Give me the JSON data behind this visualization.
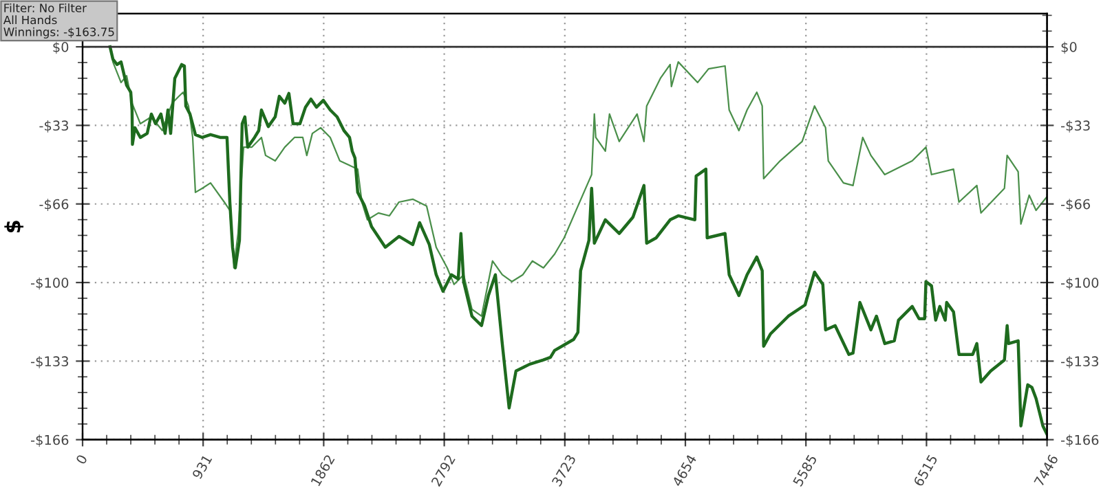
{
  "chart_data": {
    "type": "line",
    "ylabel": "$",
    "annotations": [
      "Filter: No Filter\nAll Hands\nWinnings: -$163.75"
    ],
    "xlim": [
      0,
      7446
    ],
    "ylim": [
      -166,
      14
    ],
    "xticks": [
      0,
      {
        "value": 930.75,
        "label": "931"
      },
      {
        "value": 1861.5,
        "label": "1862"
      },
      {
        "value": 2792.25,
        "label": "2792"
      },
      {
        "value": 3723,
        "label": "3723"
      },
      {
        "value": 4653.75,
        "label": "4654"
      },
      {
        "value": 5584.5,
        "label": "5585"
      },
      {
        "value": 6515.25,
        "label": "6515"
      },
      7446
    ],
    "yticks": [
      {
        "value": 0,
        "label": "$0"
      },
      {
        "value": -33.2,
        "label": "-$33"
      },
      {
        "value": -66.4,
        "label": "-$66"
      },
      {
        "value": -99.6,
        "label": "-$100"
      },
      {
        "value": -132.8,
        "label": "-$133"
      },
      {
        "value": -166,
        "label": "-$166"
      }
    ],
    "y2lim": [
      -166,
      14
    ],
    "y2ticks": [
      {
        "value": 0,
        "label": "$0"
      },
      {
        "value": -33.2,
        "label": "-$33"
      },
      {
        "value": -66.4,
        "label": "-$66"
      },
      {
        "value": -99.6,
        "label": "-$100"
      },
      {
        "value": -132.8,
        "label": "-$133"
      },
      {
        "value": -166,
        "label": "-$166"
      }
    ],
    "grid": true,
    "ref_lines": [
      {
        "axis": "y",
        "value": 0,
        "color": "#333333"
      }
    ],
    "series": [
      {
        "color": "#4a8f4a",
        "x": [
          212,
          234,
          297,
          340,
          382,
          446,
          531,
          616,
          691,
          744,
          776,
          818,
          850,
          871,
          924,
          988,
          1094,
          1137,
          1168,
          1200,
          1243,
          1307,
          1381,
          1413,
          1487,
          1561,
          1636,
          1700,
          1731,
          1774,
          1838,
          1912,
          1986,
          2124,
          2156,
          2199,
          2284,
          2369,
          2443,
          2549,
          2656,
          2730,
          2815,
          2868,
          2942,
          3006,
          3080,
          3165,
          3240,
          3314,
          3399,
          3473,
          3558,
          3644,
          3718,
          3824,
          3930,
          3951,
          3962,
          4036,
          4068,
          4143,
          4281,
          4334,
          4355,
          4461,
          4536,
          4546,
          4599,
          4748,
          4833,
          4960,
          4992,
          5067,
          5130,
          5205,
          5247,
          5258,
          5385,
          5555,
          5651,
          5736,
          5757,
          5874,
          5948,
          6023,
          6086,
          6193,
          6405,
          6511,
          6554,
          6724,
          6766,
          6904,
          6936,
          7117,
          7138,
          7223,
          7244,
          7308,
          7361,
          7446
        ],
        "values": [
          0,
          -6.4,
          -15.1,
          -12.2,
          -23.8,
          -32.5,
          -29.6,
          -35.4,
          -23.8,
          -20.9,
          -19.2,
          -25.0,
          -38.3,
          -61.5,
          -59.8,
          -57.5,
          -65.6,
          -69.1,
          -93.4,
          -78.9,
          -42.4,
          -42.4,
          -38.3,
          -45.9,
          -48.2,
          -42.4,
          -38.3,
          -38.3,
          -45.9,
          -36.6,
          -34.2,
          -38.3,
          -48.2,
          -51.7,
          -65.6,
          -73.1,
          -70.2,
          -71.4,
          -65.6,
          -64.4,
          -67.3,
          -84.7,
          -93.4,
          -100.4,
          -96.3,
          -110.9,
          -113.8,
          -90.5,
          -96.3,
          -99.2,
          -96.3,
          -90.5,
          -93.4,
          -87.6,
          -80.7,
          -67.3,
          -54.0,
          -28.4,
          -38.3,
          -44.1,
          -28.4,
          -40.0,
          -28.4,
          -40.0,
          -25.0,
          -13.3,
          -7.5,
          -16.8,
          -6.4,
          -15.1,
          -9.3,
          -8.1,
          -26.7,
          -35.4,
          -26.7,
          -19.2,
          -25.0,
          -55.7,
          -48.2,
          -40.0,
          -25.0,
          -34.2,
          -48.2,
          -57.5,
          -58.6,
          -38.3,
          -45.9,
          -54.0,
          -48.2,
          -42.4,
          -54.0,
          -51.7,
          -65.6,
          -58.6,
          -70.2,
          -59.8,
          -45.9,
          -52.8,
          -74.9,
          -62.7,
          -69.1,
          -63.3
        ]
      },
      {
        "color": "#1e6b1e",
        "x": [
          212,
          234,
          266,
          297,
          340,
          372,
          382,
          385,
          404,
          446,
          499,
          531,
          563,
          605,
          637,
          659,
          680,
          712,
          765,
          786,
          797,
          829,
          871,
          924,
          988,
          1062,
          1115,
          1137,
          1158,
          1179,
          1211,
          1232,
          1253,
          1275,
          1328,
          1360,
          1381,
          1434,
          1487,
          1519,
          1561,
          1593,
          1625,
          1678,
          1721,
          1763,
          1806,
          1859,
          1912,
          1965,
          2018,
          2061,
          2082,
          2103,
          2124,
          2178,
          2231,
          2337,
          2443,
          2549,
          2602,
          2677,
          2730,
          2783,
          2847,
          2900,
          2921,
          2942,
          3006,
          3080,
          3133,
          3187,
          3240,
          3293,
          3346,
          3452,
          3558,
          3612,
          3644,
          3792,
          3824,
          3845,
          3909,
          3930,
          3951,
          4036,
          4143,
          4249,
          4334,
          4355,
          4429,
          4536,
          4599,
          4727,
          4737,
          4812,
          4822,
          4960,
          4992,
          5067,
          5130,
          5205,
          5247,
          5258,
          5311,
          5449,
          5577,
          5651,
          5715,
          5736,
          5810,
          5916,
          5948,
          6001,
          6086,
          6129,
          6193,
          6267,
          6299,
          6405,
          6458,
          6501,
          6511,
          6554,
          6586,
          6618,
          6660,
          6671,
          6724,
          6766,
          6872,
          6904,
          6936,
          7011,
          7117,
          7138,
          7149,
          7223,
          7244,
          7297,
          7329,
          7361,
          7414,
          7446
        ],
        "values": [
          0,
          -5.2,
          -7.5,
          -6.4,
          -16.3,
          -19.2,
          -26.7,
          -41.2,
          -34.2,
          -38.3,
          -36.6,
          -28.4,
          -32.5,
          -28.4,
          -36.6,
          -26.7,
          -36.6,
          -13.3,
          -7.5,
          -8.1,
          -25.0,
          -28.4,
          -37.1,
          -38.3,
          -37.1,
          -38.3,
          -38.3,
          -65.6,
          -84.7,
          -93.4,
          -81.8,
          -32.5,
          -29.6,
          -42.4,
          -38.3,
          -35.4,
          -26.7,
          -33.7,
          -29.6,
          -20.9,
          -23.8,
          -19.7,
          -32.5,
          -32.5,
          -25.5,
          -22.1,
          -25.5,
          -22.6,
          -26.7,
          -29.6,
          -35.4,
          -38.3,
          -44.1,
          -47.0,
          -61.5,
          -67.3,
          -76.0,
          -84.7,
          -80.1,
          -83.6,
          -74.3,
          -83.6,
          -96.3,
          -103.3,
          -96.3,
          -98.1,
          -78.9,
          -99.2,
          -113.8,
          -117.8,
          -105.1,
          -96.3,
          -125.4,
          -152.6,
          -137.0,
          -134.1,
          -132.3,
          -131.2,
          -128.3,
          -123.6,
          -120.7,
          -94.6,
          -81.8,
          -59.8,
          -83.0,
          -73.1,
          -78.9,
          -72.0,
          -58.6,
          -83.0,
          -80.7,
          -73.1,
          -71.4,
          -73.1,
          -54.6,
          -51.7,
          -80.7,
          -78.9,
          -96.3,
          -105.1,
          -96.3,
          -88.8,
          -94.6,
          -126.5,
          -121.3,
          -113.8,
          -109.1,
          -95.2,
          -100.4,
          -119.6,
          -117.8,
          -130.0,
          -129.4,
          -108.0,
          -119.6,
          -113.8,
          -125.4,
          -124.2,
          -115.5,
          -109.7,
          -114.9,
          -114.9,
          -99.2,
          -101.0,
          -115.5,
          -109.7,
          -115.5,
          -108.0,
          -112.0,
          -130.0,
          -130.0,
          -125.4,
          -141.6,
          -137.0,
          -132.3,
          -117.8,
          -125.4,
          -124.2,
          -160.2,
          -142.8,
          -143.9,
          -148.6,
          -160.2,
          -163.75
        ]
      }
    ]
  }
}
